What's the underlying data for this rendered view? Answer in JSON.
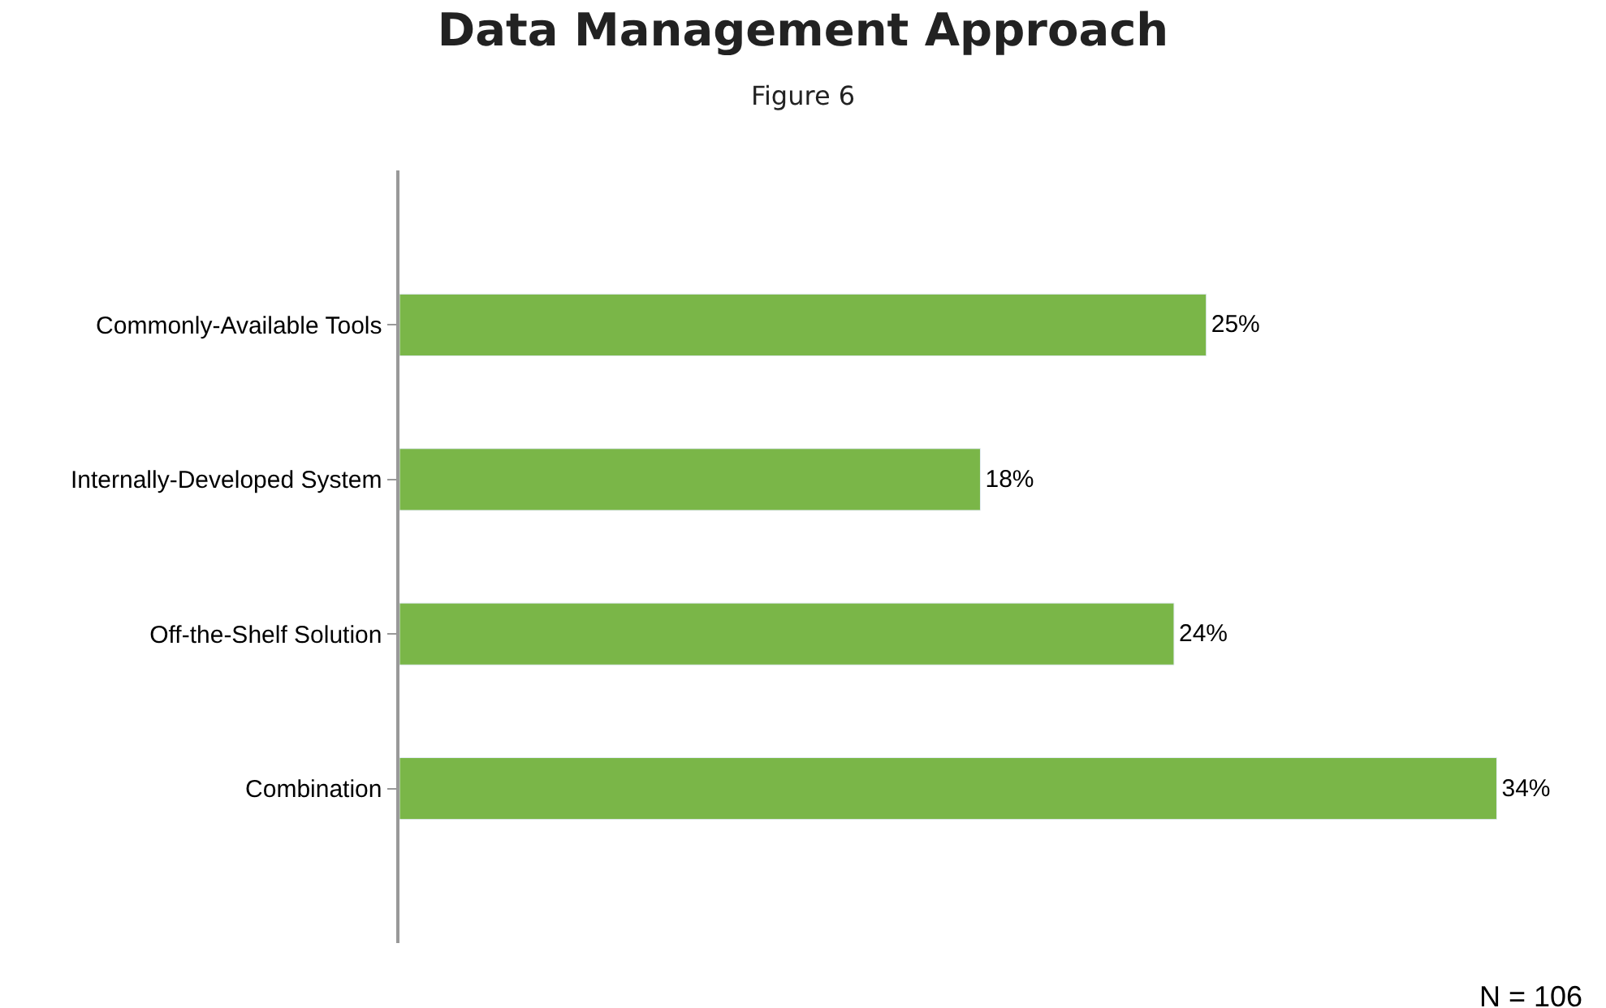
{
  "chart_data": {
    "type": "bar",
    "orientation": "horizontal",
    "title": "Data Management Approach",
    "subtitle": "Figure 6",
    "categories": [
      "Commonly-Available Tools",
      "Internally-Developed System",
      "Off-the-Shelf Solution",
      "Combination"
    ],
    "values": [
      25,
      18,
      24,
      34
    ],
    "value_labels": [
      "25%",
      "18%",
      "24%",
      "34%"
    ],
    "color": "#7ab648",
    "tick_labels": "y",
    "annotations": [
      "N = 106"
    ]
  }
}
